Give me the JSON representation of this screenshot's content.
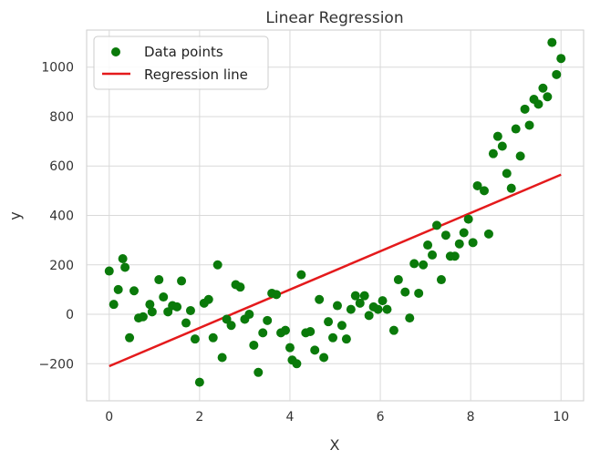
{
  "chart_data": {
    "type": "scatter",
    "title": "Linear Regression",
    "xlabel": "X",
    "ylabel": "y",
    "xlim": [
      -0.5,
      10.5
    ],
    "ylim": [
      -350,
      1150
    ],
    "xticks": [
      0,
      2,
      4,
      6,
      8,
      10
    ],
    "yticks": [
      -200,
      0,
      200,
      400,
      600,
      800,
      1000
    ],
    "xtick_labels": [
      "0",
      "2",
      "4",
      "6",
      "8",
      "10"
    ],
    "ytick_labels": [
      "−200",
      "0",
      "200",
      "400",
      "600",
      "800",
      "1000"
    ],
    "grid": true,
    "legend_position": "top-left",
    "series": [
      {
        "name": "Data points",
        "kind": "scatter",
        "color": "#0a7a0a",
        "x": [
          0.0,
          0.1,
          0.2,
          0.3,
          0.35,
          0.45,
          0.55,
          0.65,
          0.75,
          0.9,
          0.95,
          1.1,
          1.2,
          1.3,
          1.4,
          1.5,
          1.6,
          1.7,
          1.8,
          1.9,
          2.0,
          2.1,
          2.2,
          2.3,
          2.4,
          2.5,
          2.6,
          2.7,
          2.8,
          2.9,
          3.0,
          3.1,
          3.2,
          3.3,
          3.4,
          3.5,
          3.6,
          3.7,
          3.8,
          3.9,
          4.0,
          4.05,
          4.15,
          4.25,
          4.35,
          4.45,
          4.55,
          4.65,
          4.75,
          4.85,
          4.95,
          5.05,
          5.15,
          5.25,
          5.35,
          5.45,
          5.55,
          5.65,
          5.75,
          5.85,
          5.95,
          6.05,
          6.15,
          6.3,
          6.4,
          6.55,
          6.65,
          6.75,
          6.85,
          6.95,
          7.05,
          7.15,
          7.25,
          7.35,
          7.45,
          7.55,
          7.65,
          7.75,
          7.85,
          7.95,
          8.05,
          8.15,
          8.3,
          8.4,
          8.5,
          8.6,
          8.7,
          8.8,
          8.9,
          9.0,
          9.1,
          9.2,
          9.3,
          9.4,
          9.5,
          9.6,
          9.7,
          9.8,
          9.9,
          10.0
        ],
        "y": [
          175,
          40,
          100,
          225,
          190,
          -95,
          95,
          -15,
          -10,
          40,
          10,
          140,
          70,
          10,
          35,
          30,
          135,
          -35,
          15,
          -100,
          -275,
          45,
          60,
          -95,
          200,
          -175,
          -20,
          -45,
          120,
          110,
          -20,
          0,
          -125,
          -235,
          -75,
          -25,
          85,
          80,
          -75,
          -65,
          -135,
          -185,
          -200,
          160,
          -75,
          -70,
          -145,
          60,
          -175,
          -30,
          -95,
          35,
          -45,
          -100,
          20,
          75,
          45,
          75,
          -5,
          30,
          20,
          55,
          20,
          -65,
          140,
          90,
          -15,
          205,
          85,
          200,
          280,
          240,
          360,
          140,
          320,
          235,
          235,
          285,
          330,
          385,
          290,
          520,
          500,
          325,
          650,
          720,
          680,
          570,
          510,
          750,
          640,
          830,
          765,
          870,
          850,
          915,
          880,
          1100,
          970,
          1035
        ]
      },
      {
        "name": "Regression line",
        "kind": "line",
        "color": "#e41a1c",
        "x": [
          0,
          10
        ],
        "y": [
          -210,
          565
        ]
      }
    ]
  }
}
